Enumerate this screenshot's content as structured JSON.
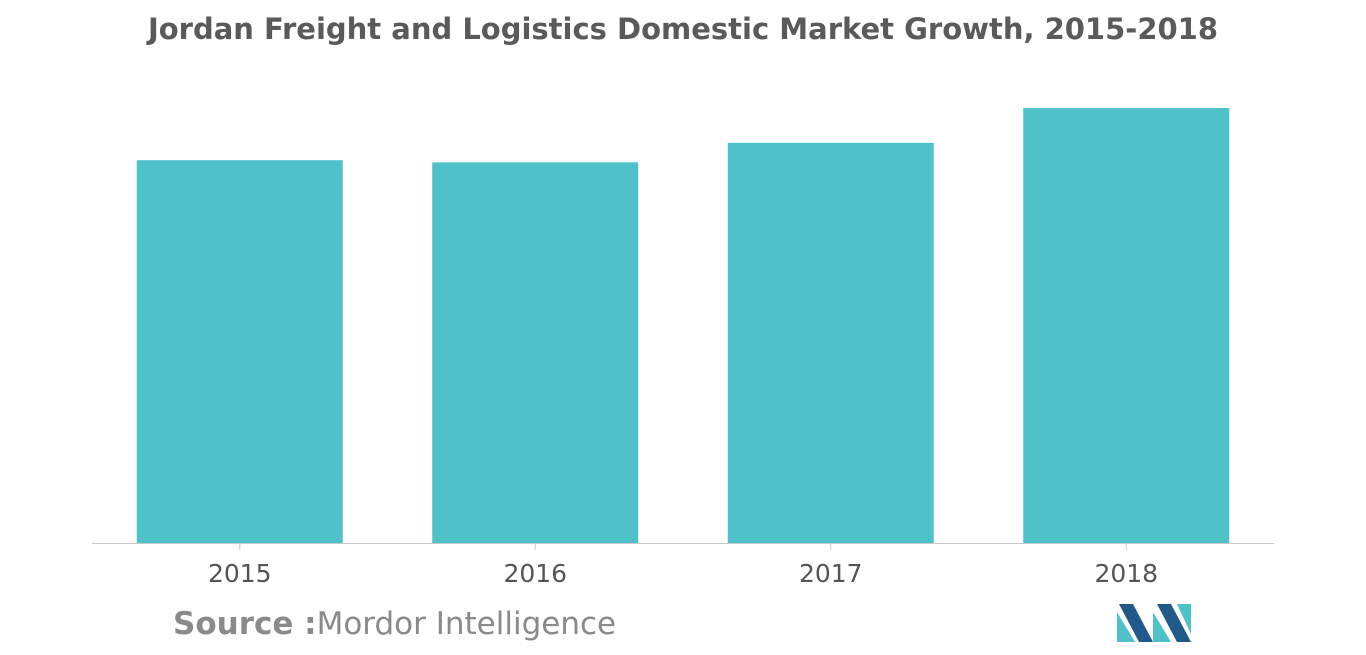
{
  "chart_data": {
    "type": "bar",
    "title": "Jordan Freight and Logistics Domestic Market Growth, 2015-2018",
    "categories": [
      "2015",
      "2016",
      "2017",
      "2018"
    ],
    "values": [
      88,
      87.5,
      92,
      100
    ],
    "xlabel": "",
    "ylabel": "",
    "ylim": [
      0,
      100
    ],
    "grid": false,
    "legend": "none",
    "bar_color": "#4fc2c9"
  },
  "source": {
    "prefix": "Source :",
    "name": "Mordor Intelligence"
  },
  "colors": {
    "bar": "#4fc2c9",
    "axis": "#c8c8c8",
    "tick_text": "#555555",
    "logo_dark": "#1f5a8a",
    "logo_light": "#4fc2c9"
  },
  "logo_icon": "mordor-intelligence-logo-icon"
}
